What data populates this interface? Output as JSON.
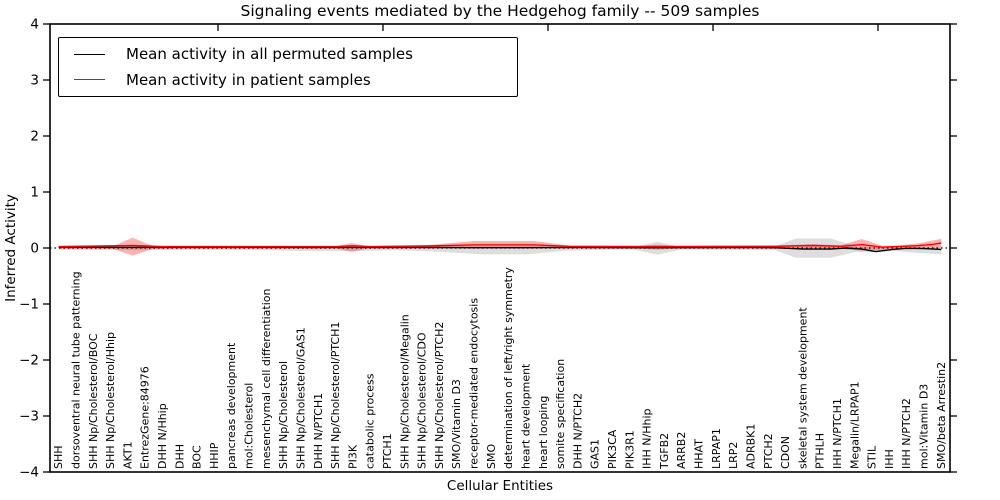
{
  "chart_data": {
    "type": "line",
    "title": "Signaling events mediated by the Hedgehog family -- 509 samples",
    "xlabel": "Cellular Entities",
    "ylabel": "Inferred Activity",
    "ylim": [
      -4,
      4
    ],
    "yticks": [
      4,
      3,
      2,
      1,
      0,
      -1,
      -2,
      -3,
      -4
    ],
    "ytick_labels": [
      "4",
      "3",
      "2",
      "1",
      "0",
      "−1",
      "−2",
      "−3",
      "−4"
    ],
    "grid": false,
    "zero_line": {
      "value": 0,
      "style": "dotted",
      "color": "#000000"
    },
    "legend": {
      "position": "upper left",
      "entries": [
        {
          "label": "Mean activity in all permuted samples",
          "color": "#000000"
        },
        {
          "label": "Mean activity in patient samples",
          "color": "#ff0000"
        }
      ]
    },
    "categories": [
      "SHH",
      "dorsoventral neural tube patterning",
      "SHH Np/Cholesterol/BOC",
      "SHH Np/Cholesterol/Hhip",
      "AKT1",
      "EntrezGene:84976",
      "DHH N/Hhip",
      "DHH",
      "BOC",
      "HHIP",
      "pancreas development",
      "mol:Cholesterol",
      "mesenchymal cell differentiation",
      "SHH Np/Cholesterol",
      "SHH Np/Cholesterol/GAS1",
      "DHH N/PTCH1",
      "SHH Np/Cholesterol/PTCH1",
      "PI3K",
      "catabolic process",
      "PTCH1",
      "SHH Np/Cholesterol/Megalin",
      "SHH Np/Cholesterol/CDO",
      "SHH Np/Cholesterol/PTCH2",
      "SMO/Vitamin D3",
      "receptor-mediated endocytosis",
      "SMO",
      "determination of left/right symmetry",
      "heart development",
      "heart looping",
      "somite specification",
      "DHH N/PTCH2",
      "GAS1",
      "PIK3CA",
      "PIK3R1",
      "IHH N/Hhip",
      "TGFB2",
      "ARRB2",
      "HHAT",
      "LRPAP1",
      "LRP2",
      "ADRBK1",
      "PTCH2",
      "CDON",
      "skeletal system development",
      "PTHLH",
      "IHH N/PTCH1",
      "Megalin/LRPAP1",
      "STIL",
      "IHH",
      "IHH N/PTCH2",
      "mol:Vitamin D3",
      "SMO/beta Arrestin2"
    ],
    "series": [
      {
        "name": "Mean activity in all permuted samples",
        "color": "#000000",
        "points": [
          [
            0,
            0.015
          ],
          [
            4.27,
            0.01
          ],
          [
            10,
            0.015
          ],
          [
            14,
            0.01
          ],
          [
            16.95,
            0.01
          ],
          [
            21,
            0.01
          ],
          [
            24,
            0.005
          ],
          [
            27,
            0.005
          ],
          [
            30,
            0.01
          ],
          [
            34.6,
            0.005
          ],
          [
            40,
            0.01
          ],
          [
            41.4,
            0.005
          ],
          [
            43,
            -0.02
          ],
          [
            44.6,
            -0.02
          ],
          [
            45.5,
            0.0
          ],
          [
            46.4,
            -0.02
          ],
          [
            47.2,
            -0.065
          ],
          [
            48.2,
            -0.025
          ],
          [
            49,
            -0.005
          ],
          [
            50,
            -0.01
          ],
          [
            51,
            -0.025
          ]
        ]
      },
      {
        "name": "Mean activity in patient samples",
        "color": "#ff0000",
        "points": [
          [
            0,
            0.025
          ],
          [
            4.27,
            0.045
          ],
          [
            6,
            0.025
          ],
          [
            16,
            0.025
          ],
          [
            16.95,
            0.04
          ],
          [
            18,
            0.025
          ],
          [
            21.2,
            0.035
          ],
          [
            24,
            0.055
          ],
          [
            27.5,
            0.055
          ],
          [
            29.5,
            0.03
          ],
          [
            34.6,
            0.025
          ],
          [
            41.4,
            0.03
          ],
          [
            43.6,
            0.045
          ],
          [
            45.2,
            0.03
          ],
          [
            46.4,
            0.06
          ],
          [
            47.6,
            0.015
          ],
          [
            48.4,
            0.025
          ],
          [
            49.5,
            0.04
          ],
          [
            50.5,
            0.065
          ],
          [
            51,
            0.09
          ]
        ]
      }
    ],
    "bands": [
      {
        "name": "permuted-samples-range",
        "color": "#000000",
        "opacity": 0.13,
        "points": [
          [
            0,
            0.02,
            -0.03
          ],
          [
            4.3,
            0.03,
            -0.04
          ],
          [
            8,
            0.02,
            -0.03
          ],
          [
            12,
            0.02,
            -0.04
          ],
          [
            14.5,
            0.02,
            -0.055
          ],
          [
            17,
            0.02,
            -0.055
          ],
          [
            19.5,
            0.02,
            -0.04
          ],
          [
            21.5,
            0.03,
            -0.06
          ],
          [
            24.5,
            0.035,
            -0.115
          ],
          [
            27,
            0.035,
            -0.115
          ],
          [
            29.3,
            0.02,
            -0.05
          ],
          [
            31.5,
            0.02,
            -0.03
          ],
          [
            33.3,
            0.02,
            -0.03
          ],
          [
            34.6,
            0.11,
            -0.12
          ],
          [
            35.9,
            0.02,
            -0.03
          ],
          [
            38,
            0.02,
            -0.03
          ],
          [
            41.4,
            0.03,
            -0.04
          ],
          [
            42.6,
            0.17,
            -0.175
          ],
          [
            44.6,
            0.17,
            -0.175
          ],
          [
            46.1,
            0.03,
            -0.07
          ],
          [
            47.2,
            0.02,
            -0.075
          ],
          [
            48.2,
            0.02,
            -0.05
          ],
          [
            49.6,
            0.03,
            -0.09
          ],
          [
            51,
            0.03,
            -0.11
          ]
        ]
      },
      {
        "name": "patient-samples-range",
        "color": "#ff0000",
        "opacity": 0.3,
        "points": [
          [
            0,
            0.04,
            -0.02
          ],
          [
            3.2,
            0.04,
            -0.02
          ],
          [
            4.27,
            0.185,
            -0.135
          ],
          [
            5.4,
            0.04,
            -0.02
          ],
          [
            16.1,
            0.035,
            -0.015
          ],
          [
            16.95,
            0.09,
            -0.07
          ],
          [
            17.8,
            0.035,
            -0.015
          ],
          [
            21.2,
            0.05,
            -0.01
          ],
          [
            24,
            0.125,
            0.0
          ],
          [
            27.5,
            0.125,
            0.0
          ],
          [
            29.5,
            0.045,
            -0.01
          ],
          [
            33.5,
            0.04,
            -0.01
          ],
          [
            34.6,
            0.06,
            -0.03
          ],
          [
            35.7,
            0.04,
            -0.01
          ],
          [
            41.4,
            0.045,
            -0.015
          ],
          [
            43.6,
            0.07,
            -0.02
          ],
          [
            45.2,
            0.05,
            -0.015
          ],
          [
            46.4,
            0.16,
            -0.05
          ],
          [
            47.6,
            0.04,
            -0.03
          ],
          [
            48.4,
            0.04,
            -0.015
          ],
          [
            49.8,
            0.09,
            0.0
          ],
          [
            51,
            0.165,
            0.01
          ]
        ]
      }
    ]
  }
}
